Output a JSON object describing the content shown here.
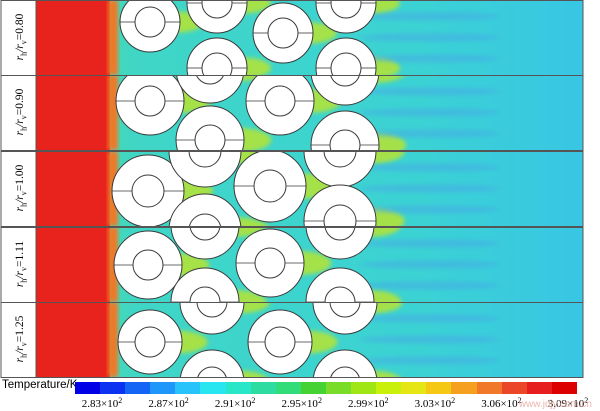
{
  "panels": [
    {
      "label": "r_h/r_v=0.80",
      "prefix": "r",
      "sub1": "h",
      "mid": "/r",
      "sub2": "v",
      "value": "=0.80"
    },
    {
      "label": "r_h/r_v=0.90",
      "prefix": "r",
      "sub1": "h",
      "mid": "/r",
      "sub2": "v",
      "value": "=0.90"
    },
    {
      "label": "r_h/r_v=1.00",
      "prefix": "r",
      "sub1": "h",
      "mid": "/r",
      "sub2": "v",
      "value": "=1.00"
    },
    {
      "label": "r_h/r_v=1.11",
      "prefix": "r",
      "sub1": "h",
      "mid": "/r",
      "sub2": "v",
      "value": "=1.11"
    },
    {
      "label": "r_h/r_v=1.25",
      "prefix": "r",
      "sub1": "h",
      "mid": "/r",
      "sub2": "v",
      "value": "=1.25"
    }
  ],
  "colorbar": {
    "title": "Temperature/K",
    "colors": [
      "#0000e6",
      "#0a32f0",
      "#1464f5",
      "#1e96fa",
      "#28c3fa",
      "#28e6f0",
      "#28e6c8",
      "#2ddca0",
      "#32dc78",
      "#46d232",
      "#78dc28",
      "#a0e614",
      "#c8f00a",
      "#e6e614",
      "#f5c814",
      "#f5a01e",
      "#f07828",
      "#eb4628",
      "#e61e1e",
      "#dc0000"
    ],
    "ticks": [
      {
        "mantissa": "2.83",
        "exp": "2"
      },
      {
        "mantissa": "2.87",
        "exp": "2"
      },
      {
        "mantissa": "2.91",
        "exp": "2"
      },
      {
        "mantissa": "2.95",
        "exp": "2"
      },
      {
        "mantissa": "2.99",
        "exp": "2"
      },
      {
        "mantissa": "3.03",
        "exp": "2"
      },
      {
        "mantissa": "3.06",
        "exp": "2"
      },
      {
        "mantissa": "3.09",
        "exp": "2"
      }
    ]
  },
  "colors": {
    "hot": "#e8221c",
    "field": "#3fd6c6",
    "field_deep": "#38c6e4",
    "wake_blue": "#4aa3e8",
    "warm_wake": "#c8e61e",
    "tube_fill": "#ffffff",
    "outline": "#3a3a3a"
  },
  "watermark": "www.jdjy.com.cn"
}
